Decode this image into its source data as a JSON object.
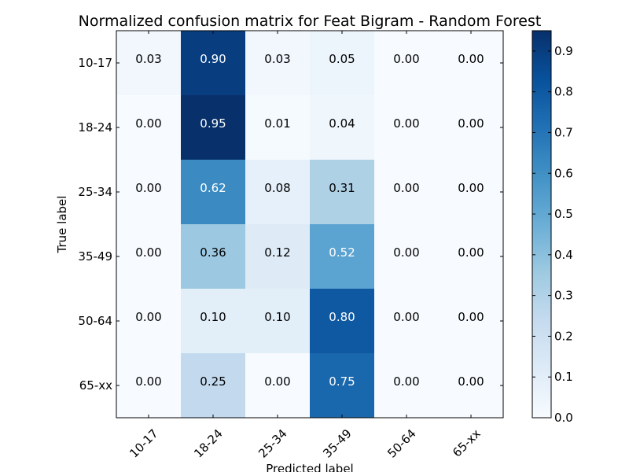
{
  "chart_data": {
    "type": "heatmap",
    "title": "Normalized confusion matrix for Feat Bigram - Random Forest",
    "xlabel": "Predicted label",
    "ylabel": "True label",
    "x_categories": [
      "10-17",
      "18-24",
      "25-34",
      "35-49",
      "50-64",
      "65-xx"
    ],
    "y_categories": [
      "10-17",
      "18-24",
      "25-34",
      "35-49",
      "50-64",
      "65-xx"
    ],
    "values": [
      [
        0.03,
        0.9,
        0.03,
        0.05,
        0.0,
        0.0
      ],
      [
        0.0,
        0.95,
        0.01,
        0.04,
        0.0,
        0.0
      ],
      [
        0.0,
        0.62,
        0.08,
        0.31,
        0.0,
        0.0
      ],
      [
        0.0,
        0.36,
        0.12,
        0.52,
        0.0,
        0.0
      ],
      [
        0.0,
        0.1,
        0.1,
        0.8,
        0.0,
        0.0
      ],
      [
        0.0,
        0.25,
        0.0,
        0.75,
        0.0,
        0.0
      ]
    ],
    "value_labels": [
      [
        "0.03",
        "0.90",
        "0.03",
        "0.05",
        "0.00",
        "0.00"
      ],
      [
        "0.00",
        "0.95",
        "0.01",
        "0.04",
        "0.00",
        "0.00"
      ],
      [
        "0.00",
        "0.62",
        "0.08",
        "0.31",
        "0.00",
        "0.00"
      ],
      [
        "0.00",
        "0.36",
        "0.12",
        "0.52",
        "0.00",
        "0.00"
      ],
      [
        "0.00",
        "0.10",
        "0.10",
        "0.80",
        "0.00",
        "0.00"
      ],
      [
        "0.00",
        "0.25",
        "0.00",
        "0.75",
        "0.00",
        "0.00"
      ]
    ],
    "colorbar": {
      "colormap": "Blues",
      "range": [
        0,
        0.95
      ],
      "ticks": [
        0.0,
        0.1,
        0.2,
        0.3,
        0.4,
        0.5,
        0.6,
        0.7,
        0.8,
        0.9
      ],
      "tick_labels": [
        "0.0",
        "0.1",
        "0.2",
        "0.3",
        "0.4",
        "0.5",
        "0.6",
        "0.7",
        "0.8",
        "0.9"
      ]
    },
    "text_color_light": "#ffffff",
    "text_color_dark": "#000000"
  }
}
